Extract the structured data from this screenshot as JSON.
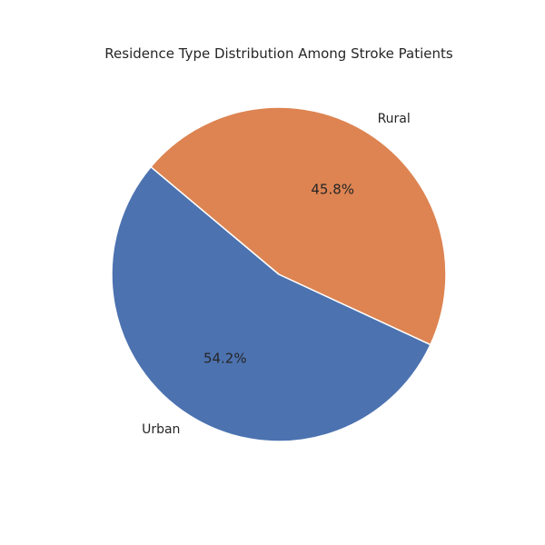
{
  "chart_data": {
    "type": "pie",
    "title": "Residence Type Distribution Among Stroke Patients",
    "slices": [
      {
        "label": "Urban",
        "value": 54.2,
        "pct_label": "54.2%",
        "color": "#4c72b0"
      },
      {
        "label": "Rural",
        "value": 45.8,
        "pct_label": "45.8%",
        "color": "#dd8452"
      }
    ],
    "start_angle_deg": 140,
    "direction": "counterclockwise",
    "edge_color": "#ffffff"
  }
}
